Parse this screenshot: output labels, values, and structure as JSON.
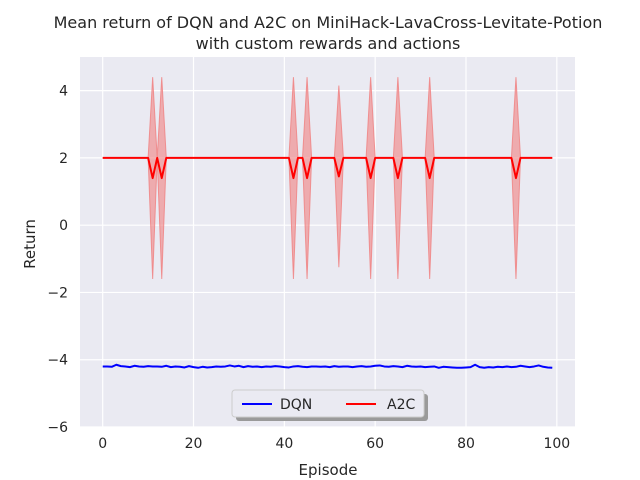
{
  "chart_data": {
    "type": "line",
    "title": "Mean return of DQN and A2C on MiniHack-LavaCross-Levitate-Potion",
    "subtitle": "with custom rewards and actions",
    "xlabel": "Episode",
    "ylabel": "Return",
    "xlim": [
      -5,
      104
    ],
    "ylim": [
      -6,
      5
    ],
    "xticks": [
      0,
      20,
      40,
      60,
      80,
      100
    ],
    "yticks": [
      -6,
      -4,
      -2,
      0,
      2,
      4
    ],
    "grid": true,
    "legend_position": "lower center",
    "series": [
      {
        "name": "DQN",
        "color": "#0000ff",
        "x_start": 0,
        "values": [
          -4.2,
          -4.2,
          -4.21,
          -4.15,
          -4.19,
          -4.2,
          -4.22,
          -4.18,
          -4.2,
          -4.21,
          -4.19,
          -4.2,
          -4.2,
          -4.21,
          -4.18,
          -4.22,
          -4.2,
          -4.21,
          -4.23,
          -4.19,
          -4.22,
          -4.24,
          -4.21,
          -4.23,
          -4.22,
          -4.2,
          -4.21,
          -4.2,
          -4.17,
          -4.2,
          -4.18,
          -4.22,
          -4.19,
          -4.21,
          -4.2,
          -4.22,
          -4.2,
          -4.21,
          -4.19,
          -4.2,
          -4.22,
          -4.23,
          -4.2,
          -4.19,
          -4.21,
          -4.22,
          -4.2,
          -4.2,
          -4.21,
          -4.2,
          -4.22,
          -4.19,
          -4.21,
          -4.2,
          -4.2,
          -4.22,
          -4.2,
          -4.19,
          -4.21,
          -4.2,
          -4.18,
          -4.17,
          -4.2,
          -4.21,
          -4.19,
          -4.2,
          -4.22,
          -4.18,
          -4.2,
          -4.21,
          -4.2,
          -4.22,
          -4.21,
          -4.2,
          -4.24,
          -4.21,
          -4.22,
          -4.23,
          -4.24,
          -4.24,
          -4.23,
          -4.22,
          -4.15,
          -4.22,
          -4.24,
          -4.22,
          -4.23,
          -4.21,
          -4.22,
          -4.2,
          -4.22,
          -4.21,
          -4.18,
          -4.2,
          -4.22,
          -4.2,
          -4.17,
          -4.21,
          -4.23,
          -4.24
        ]
      },
      {
        "name": "A2C",
        "color": "#ff0000",
        "band_color": "#f08080",
        "x_start": 0,
        "values": [
          2,
          2,
          2,
          2,
          2,
          2,
          2,
          2,
          2,
          2,
          2,
          1.4,
          2,
          1.4,
          2,
          2,
          2,
          2,
          2,
          2,
          2,
          2,
          2,
          2,
          2,
          2,
          2,
          2,
          2,
          2,
          2,
          2,
          2,
          2,
          2,
          2,
          2,
          2,
          2,
          2,
          2,
          2,
          1.4,
          2,
          2,
          1.4,
          2,
          2,
          2,
          2,
          2,
          2,
          1.45,
          2,
          2,
          2,
          2,
          2,
          2,
          1.4,
          2,
          2,
          2,
          2,
          2,
          1.4,
          2,
          2,
          2,
          2,
          2,
          2,
          1.4,
          2,
          2,
          2,
          2,
          2,
          2,
          2,
          2,
          2,
          2,
          2,
          2,
          2,
          2,
          2,
          2,
          2,
          2,
          1.4,
          2,
          2,
          2,
          2,
          2,
          2,
          2,
          2
        ],
        "band_upper": [
          2,
          2,
          2,
          2,
          2,
          2,
          2,
          2,
          2,
          2,
          2,
          4.4,
          2,
          4.4,
          2,
          2,
          2,
          2,
          2,
          2,
          2,
          2,
          2,
          2,
          2,
          2,
          2,
          2,
          2,
          2,
          2,
          2,
          2,
          2,
          2,
          2,
          2,
          2,
          2,
          2,
          2,
          2,
          4.4,
          2,
          2,
          4.4,
          2,
          2,
          2,
          2,
          2,
          2,
          4.15,
          2,
          2,
          2,
          2,
          2,
          2,
          4.4,
          2,
          2,
          2,
          2,
          2,
          4.4,
          2,
          2,
          2,
          2,
          2,
          2,
          4.4,
          2,
          2,
          2,
          2,
          2,
          2,
          2,
          2,
          2,
          2,
          2,
          2,
          2,
          2,
          2,
          2,
          2,
          2,
          4.4,
          2,
          2,
          2,
          2,
          2,
          2,
          2,
          2
        ],
        "band_lower": [
          2,
          2,
          2,
          2,
          2,
          2,
          2,
          2,
          2,
          2,
          2,
          -1.6,
          2,
          -1.6,
          2,
          2,
          2,
          2,
          2,
          2,
          2,
          2,
          2,
          2,
          2,
          2,
          2,
          2,
          2,
          2,
          2,
          2,
          2,
          2,
          2,
          2,
          2,
          2,
          2,
          2,
          2,
          2,
          -1.6,
          2,
          2,
          -1.6,
          2,
          2,
          2,
          2,
          2,
          2,
          -1.25,
          2,
          2,
          2,
          2,
          2,
          2,
          -1.6,
          2,
          2,
          2,
          2,
          2,
          -1.6,
          2,
          2,
          2,
          2,
          2,
          2,
          -1.6,
          2,
          2,
          2,
          2,
          2,
          2,
          2,
          2,
          2,
          2,
          2,
          2,
          2,
          2,
          2,
          2,
          2,
          2,
          -1.6,
          2,
          2,
          2,
          2,
          2,
          2,
          2,
          2
        ]
      }
    ]
  }
}
